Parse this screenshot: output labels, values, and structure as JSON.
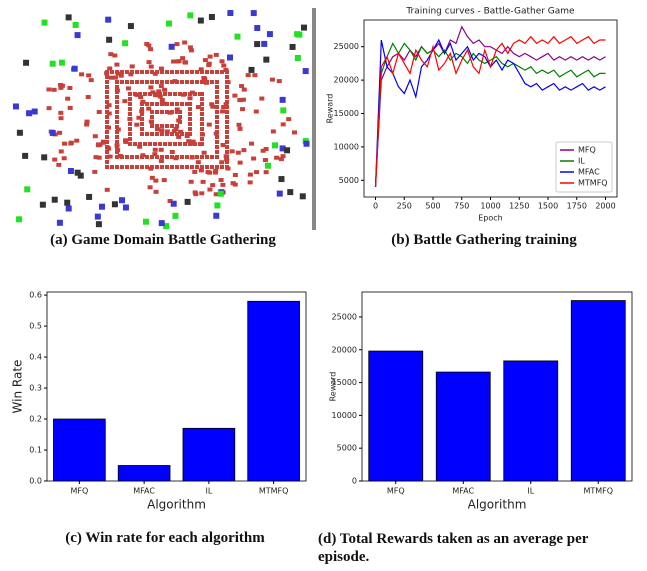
{
  "captions": [
    "(a) Game Domain Battle Gathering",
    "(b) Battle Gathering training",
    "(c) Win rate for each algorithm",
    "(d) Total Rewards taken as an average per episode."
  ],
  "chart_data": [
    {
      "type": "line",
      "title": "Training curves - Battle-Gather Game",
      "xlabel": "Epoch",
      "ylabel": "Reward",
      "x": [
        0,
        50,
        100,
        150,
        200,
        250,
        300,
        350,
        400,
        450,
        500,
        550,
        600,
        650,
        700,
        750,
        800,
        850,
        900,
        950,
        1000,
        1050,
        1100,
        1150,
        1200,
        1250,
        1300,
        1350,
        1400,
        1450,
        1500,
        1550,
        1600,
        1650,
        1700,
        1750,
        1800,
        1850,
        1900,
        1950,
        2000
      ],
      "series": [
        {
          "name": "MFQ",
          "color": "#8b008b",
          "values": [
            4000,
            20000,
            22000,
            23500,
            24000,
            23000,
            24500,
            23500,
            25000,
            24000,
            24500,
            25500,
            24000,
            26000,
            25500,
            28000,
            26500,
            25500,
            26000,
            25000,
            25000,
            24500,
            24000,
            25000,
            24000,
            23500,
            24000,
            23500,
            23000,
            23500,
            24000,
            23000,
            23500,
            23000,
            23500,
            23000,
            23500,
            23000,
            23500,
            23000,
            23500
          ]
        },
        {
          "name": "IL",
          "color": "#008000",
          "values": [
            4000,
            21000,
            23500,
            25500,
            24000,
            25500,
            24500,
            23000,
            25000,
            24000,
            24500,
            23500,
            24500,
            23000,
            24000,
            23500,
            22500,
            24000,
            23000,
            22500,
            23000,
            23500,
            22500,
            22000,
            22500,
            22000,
            21500,
            22000,
            21000,
            21500,
            21000,
            21500,
            20500,
            21000,
            21500,
            20500,
            21000,
            21500,
            20500,
            21000,
            21000
          ]
        },
        {
          "name": "MFAC",
          "color": "#0000ff",
          "values": [
            4000,
            26000,
            22000,
            21000,
            19000,
            18000,
            20000,
            17500,
            22000,
            23000,
            24500,
            26000,
            24000,
            25500,
            23000,
            24000,
            25000,
            23000,
            24000,
            23500,
            22000,
            23000,
            21500,
            23000,
            22500,
            21000,
            19500,
            19000,
            19500,
            18500,
            19000,
            19500,
            18500,
            19000,
            18500,
            19000,
            19500,
            18500,
            19000,
            18500,
            19000
          ]
        },
        {
          "name": "MTMFQ",
          "color": "#ff0000",
          "values": [
            4000,
            22000,
            23500,
            21000,
            24000,
            22500,
            21000,
            24500,
            23000,
            22000,
            25000,
            21500,
            22500,
            24000,
            21000,
            23000,
            24500,
            22000,
            21000,
            24500,
            22000,
            24500,
            25500,
            24000,
            25500,
            26000,
            25500,
            26500,
            25500,
            26000,
            25500,
            26500,
            25500,
            26000,
            26500,
            25500,
            26000,
            26500,
            25500,
            26000,
            26000
          ]
        }
      ],
      "xlim": [
        -100,
        2100
      ],
      "xticks": [
        0,
        250,
        500,
        750,
        1000,
        1250,
        1500,
        1750,
        2000
      ],
      "ylim": [
        2500,
        29000
      ],
      "yticks": [
        5000,
        10000,
        15000,
        20000,
        25000
      ],
      "legend": "lower right"
    },
    {
      "type": "bar",
      "xlabel": "Algorithm",
      "ylabel": "Win Rate",
      "categories": [
        "MFQ",
        "MFAC",
        "IL",
        "MTMFQ"
      ],
      "values": [
        0.2,
        0.05,
        0.17,
        0.58
      ],
      "color": "#0000ff",
      "ylim": [
        0,
        0.61
      ],
      "yticks": [
        {
          "value": 0,
          "label": "0.0"
        },
        0.1,
        0.2,
        0.3,
        0.4,
        0.5,
        0.6
      ]
    },
    {
      "type": "bar",
      "xlabel": "Algorithm",
      "ylabel": "Reward",
      "categories": [
        "MFQ",
        "MFAC",
        "IL",
        "MTMFQ"
      ],
      "values": [
        19800,
        16600,
        18300,
        27500
      ],
      "color": "#0000ff",
      "ylim": [
        0,
        28800
      ],
      "yticks": [
        0,
        5000,
        10000,
        15000,
        20000,
        25000
      ]
    }
  ]
}
